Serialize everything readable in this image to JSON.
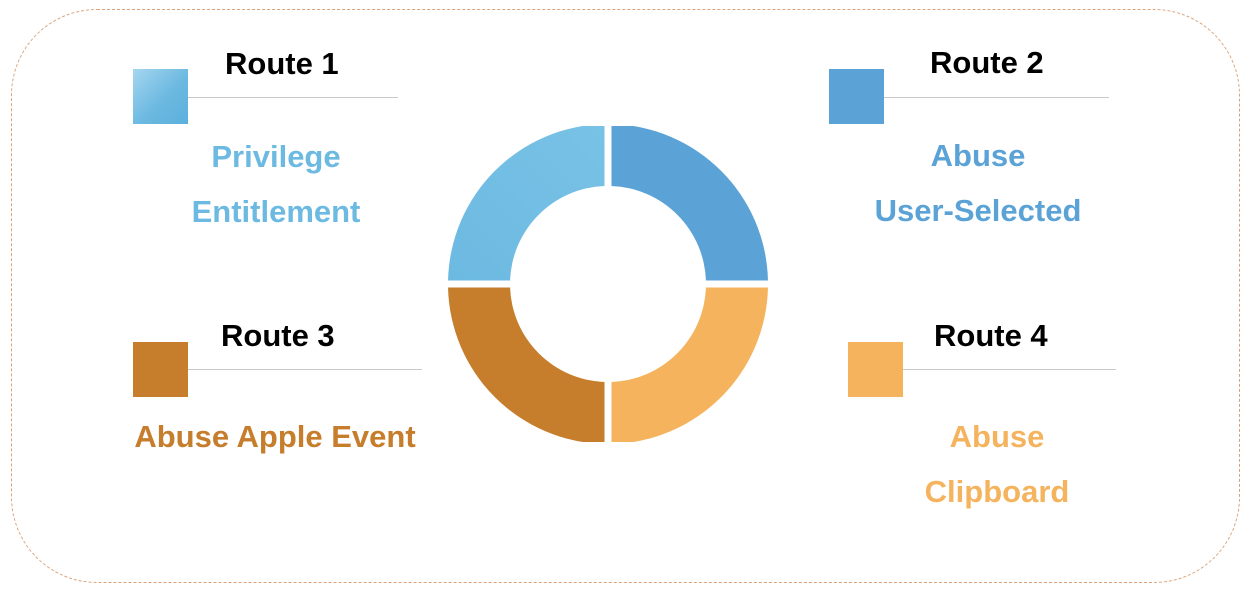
{
  "routes": [
    {
      "id": "route-1",
      "title": "Route 1",
      "description_lines": [
        "Privilege",
        "Entitlement"
      ],
      "color": "#6cb9e1",
      "color_light": "#8fcbea"
    },
    {
      "id": "route-2",
      "title": "Route 2",
      "description_lines": [
        "Abuse",
        "User-Selected"
      ],
      "color": "#5ba3d6"
    },
    {
      "id": "route-3",
      "title": "Route 3",
      "description_lines": [
        "Abuse Apple Event"
      ],
      "color": "#c67d2c"
    },
    {
      "id": "route-4",
      "title": "Route 4",
      "description_lines": [
        "Abuse",
        "Clipboard"
      ],
      "color": "#f5b35e"
    }
  ],
  "donut": {
    "segments": [
      {
        "route": "route-1",
        "color": "#6cb9e1"
      },
      {
        "route": "route-2",
        "color": "#5ba3d6"
      },
      {
        "route": "route-4",
        "color": "#f5b35e"
      },
      {
        "route": "route-3",
        "color": "#c67d2c"
      }
    ],
    "border_color": "#ffffff"
  }
}
